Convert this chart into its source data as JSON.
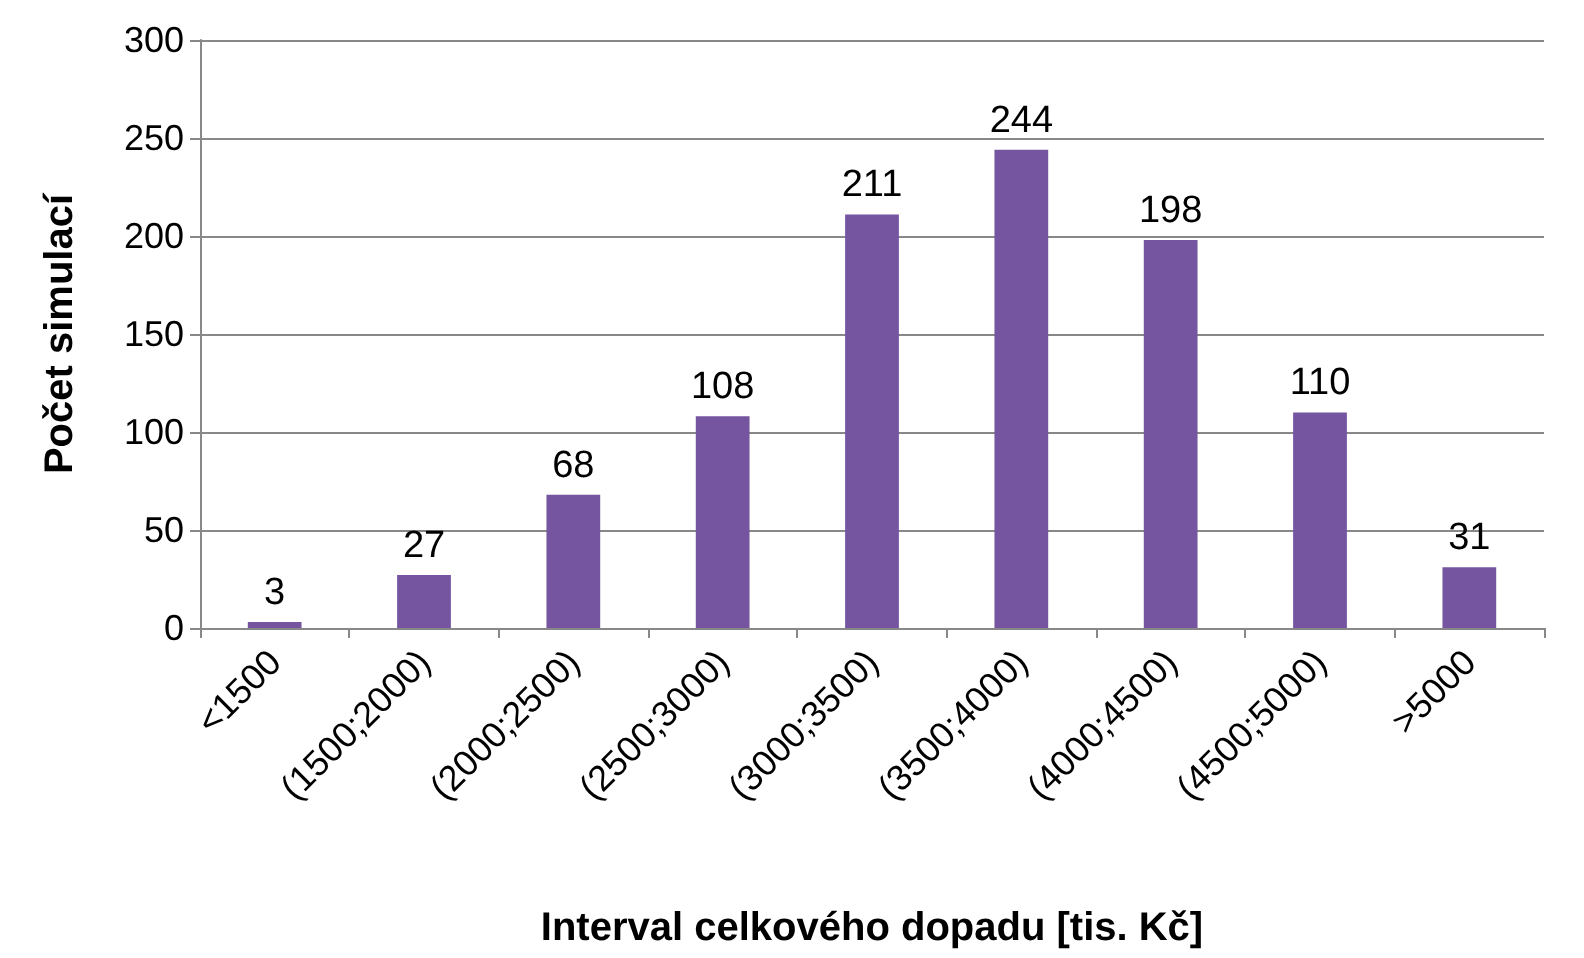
{
  "chart_data": {
    "type": "bar",
    "xlabel": "Interval celkového dopadu [tis. Kč]",
    "ylabel": "Počet simulací",
    "categories": [
      "<1500",
      "(1500;2000)",
      "(2000;2500)",
      "(2500;3000)",
      "(3000;3500)",
      "(3500;4000)",
      "(4000;4500)",
      "(4500;5000)",
      ">5000"
    ],
    "values": [
      3,
      27,
      68,
      108,
      211,
      244,
      198,
      110,
      31
    ],
    "color": "#7554a0",
    "ylim": [
      0,
      300
    ],
    "yticks": [
      0,
      50,
      100,
      150,
      200,
      250,
      300
    ],
    "grid": "y",
    "data_labels": true
  }
}
